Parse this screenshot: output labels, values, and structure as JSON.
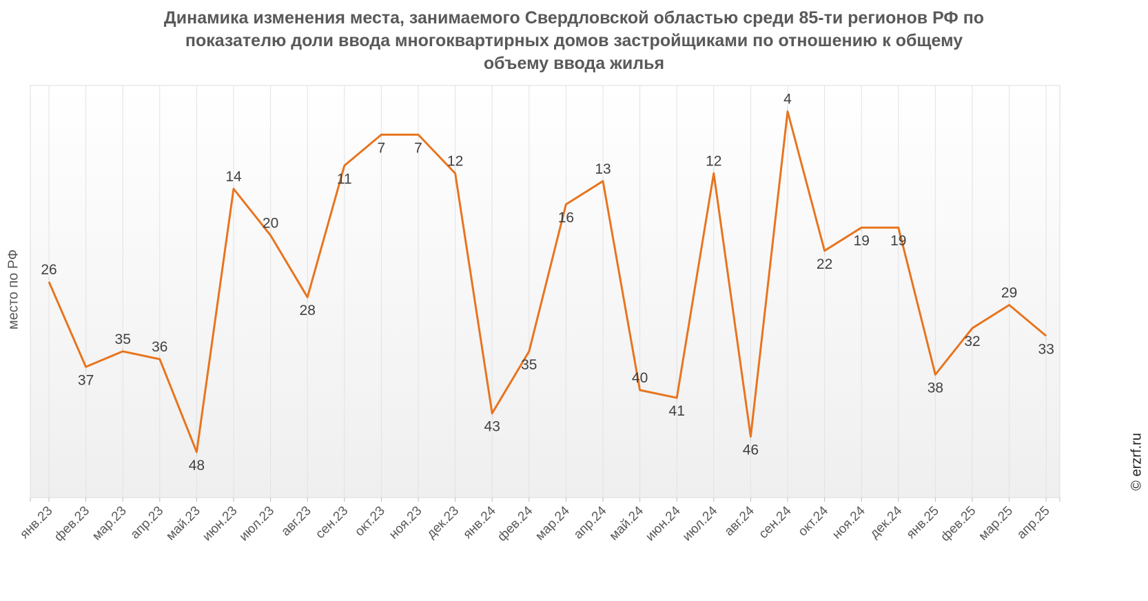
{
  "chart_data": {
    "type": "line",
    "title_lines": [
      "Динамика изменения места, занимаемого Свердловской областью среди 85-ти регионов РФ по",
      "показателю доли ввода многоквартирных домов застройщиками по отношению к общему",
      "объему ввода жилья"
    ],
    "ylabel": "место по РФ",
    "categories": [
      "янв.23",
      "фев.23",
      "мар.23",
      "апр.23",
      "май.23",
      "июн.23",
      "июл.23",
      "авг.23",
      "сен.23",
      "окт.23",
      "ноя.23",
      "дек.23",
      "янв.24",
      "фев.24",
      "мар.24",
      "апр.24",
      "май.24",
      "июн.24",
      "июл.24",
      "авг.24",
      "сен.24",
      "окт.24",
      "ноя.24",
      "дек.24",
      "янв.25",
      "фев.25",
      "мар.25",
      "апр.25"
    ],
    "values": [
      26,
      37,
      35,
      36,
      48,
      14,
      20,
      28,
      11,
      7,
      7,
      12,
      43,
      35,
      16,
      13,
      40,
      41,
      12,
      46,
      4,
      22,
      19,
      19,
      38,
      32,
      29,
      33
    ],
    "y_reversed": true,
    "ylim": [
      1,
      53
    ],
    "grid": "vertical",
    "colors": {
      "line": "#E8741E"
    }
  },
  "copyright": "© erzrf.ru"
}
